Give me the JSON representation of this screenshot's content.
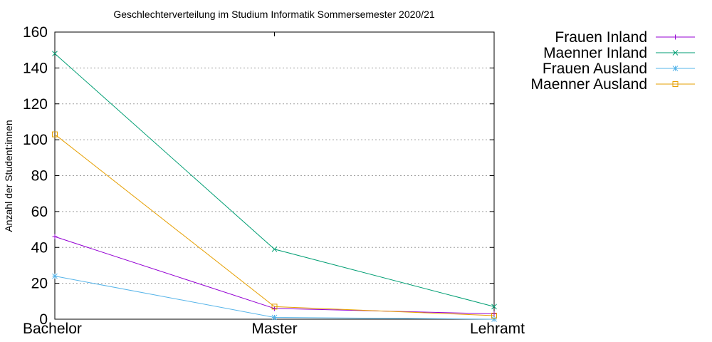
{
  "chart_data": {
    "type": "line",
    "title": "Geschlechterverteilung im Studium Informatik Sommersemester 2020/21",
    "xlabel": "",
    "ylabel": "Anzahl der Student:innen",
    "categories": [
      "Bachelor",
      "Master",
      "Lehramt"
    ],
    "ylim": [
      0,
      160
    ],
    "yticks": [
      0,
      20,
      40,
      60,
      80,
      100,
      120,
      140,
      160
    ],
    "grid": true,
    "legend_position": "outside-top-right",
    "series": [
      {
        "name": "Frauen Inland",
        "values": [
          46,
          6,
          3
        ],
        "color": "#9400d3",
        "marker": "plus"
      },
      {
        "name": "Maenner Inland",
        "values": [
          148,
          39,
          7
        ],
        "color": "#009e73",
        "marker": "cross"
      },
      {
        "name": "Frauen Ausland",
        "values": [
          24,
          1,
          0
        ],
        "color": "#56b4e9",
        "marker": "star"
      },
      {
        "name": "Maenner Ausland",
        "values": [
          103,
          7,
          2
        ],
        "color": "#e69f00",
        "marker": "square"
      }
    ]
  }
}
